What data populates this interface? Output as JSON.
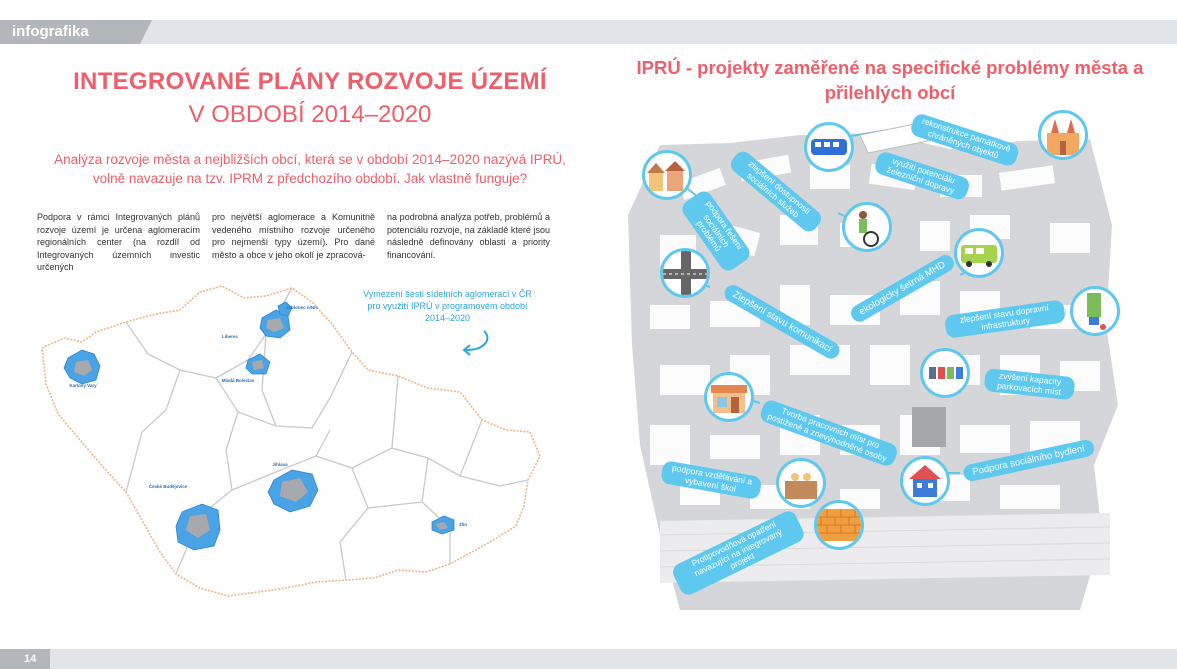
{
  "header": {
    "section_label": "infografika"
  },
  "footer": {
    "page_number": "14"
  },
  "left": {
    "title_line1": "INTEGROVANÉ PLÁNY ROZVOJE ÚZEMÍ",
    "title_line2": "V OBDOBÍ 2014–2020",
    "lead": "Analýza rozvoje města a nejbližších obcí, která se v období 2014–2020 nazývá IPRÚ, volně navazuje na tzv. IPRM z předchozího období. Jak vlastně funguje?",
    "col1": "Podpora v rámci Integrovaných plánů rozvoje území je určena aglomeracím regionálních center (na rozdíl od Integrovaných územních investic určených",
    "col2": "pro největší aglomerace a Komunitně vedeného místního rozvoje určeného pro nejmenší typy území). Pro dané město a obce v jeho okolí je zpracová-",
    "col3": "na podrobná analýza potřeb, problémů a potenciálu rozvoje, na základě které jsou následně definovány oblasti a priority financování.",
    "map_note": "Vymezení šesti sídelních aglomerací v ČR pro využití IPRÚ v programovém období 2014–2020",
    "cities": {
      "karlovy_vary": "Karlovy Vary",
      "liberec": "Liberec",
      "jablonec": "Jablonec n/Nis",
      "mlada_boleslav": "Mladá Boleslav",
      "jihlava": "Jihlava",
      "ceske_budejovice": "České Budějovice",
      "zlin": "Zlín"
    }
  },
  "right": {
    "title": "IPRÚ - projekty zaměřené na specifické problémy města a přilehlých obcí",
    "labels": [
      "rekonstrukce památkově chráněných objektů",
      "využití potenciálu železniční dopravy",
      "zlepšení dostupnosti sociálních služeb",
      "podpora řešení sociálních problémů",
      "ekologicky šetrná MHD",
      "Zlepšení stavu komunikací",
      "zlepšení stavu dopravní infrastruktury",
      "zvýšení kapacity parkovacích míst",
      "Tvorba pracovních míst pro postižené a znevýhodněné osoby",
      "podpora vzdělávání a vybavení škol",
      "Podpora sociálního bydlení",
      "Protipovodňová opatření navazující na integrovaný projekt"
    ]
  },
  "colors": {
    "accent": "#ee5e6b",
    "blue": "#5ec8ee",
    "map_border": "#f0b48c",
    "region": "#c9c9cc"
  },
  "icons": [
    "church-icon",
    "train-icon",
    "bus-icon",
    "houses-icon",
    "wheelchair-icon",
    "road-icon",
    "truck-icon",
    "parking-icon",
    "shop-icon",
    "school-icon",
    "house-icon",
    "wall-icon"
  ]
}
